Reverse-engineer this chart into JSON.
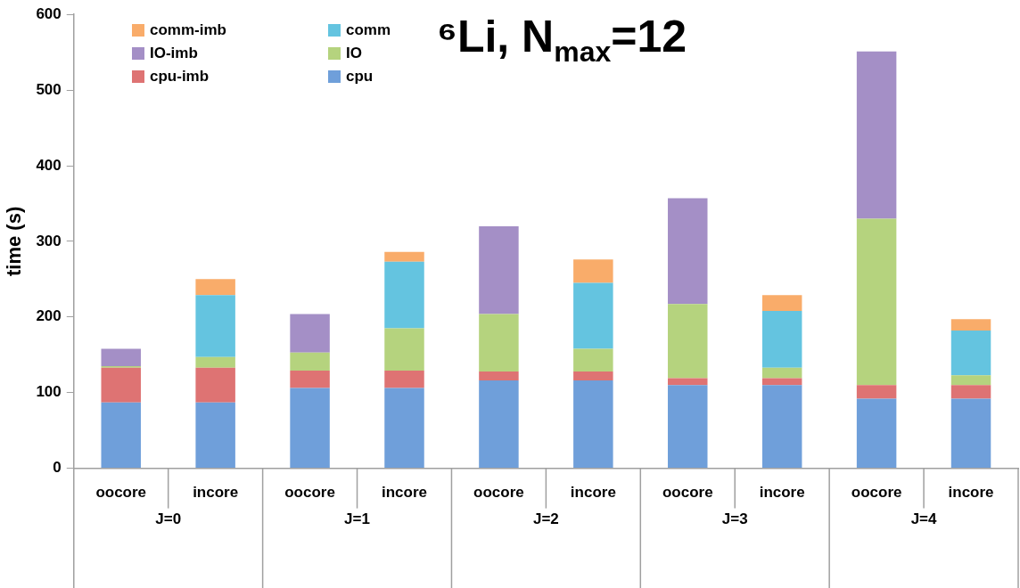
{
  "chart_data": {
    "type": "bar",
    "title": "⁶Li, N$_{max}$=12",
    "ylabel": "time (s)",
    "stacked": true,
    "categories": [
      "oocore",
      "incore",
      "oocore",
      "incore",
      "oocore",
      "incore",
      "oocore",
      "incore",
      "oocore",
      "incore"
    ],
    "annotations": [
      "J=0",
      "J=1",
      "J=2",
      "J=3",
      "J=4"
    ],
    "series": [
      {
        "name": "cpu",
        "color": "#6f9fda",
        "values": [
          87,
          87,
          106,
          106,
          116,
          116,
          110,
          110,
          92,
          92
        ]
      },
      {
        "name": "cpu-imb",
        "color": "#de7373",
        "values": [
          46,
          46,
          23,
          23,
          12,
          12,
          9,
          9,
          18,
          18
        ]
      },
      {
        "name": "IO",
        "color": "#b5d37e",
        "values": [
          2,
          14,
          24,
          56,
          76,
          30,
          98,
          14,
          220,
          13
        ]
      },
      {
        "name": "IO-imb",
        "color": "#a48fc6",
        "values": [
          23,
          0,
          51,
          0,
          116,
          0,
          140,
          0,
          221,
          0
        ]
      },
      {
        "name": "comm",
        "color": "#64c4e0",
        "values": [
          0,
          82,
          0,
          88,
          0,
          87,
          0,
          75,
          0,
          59
        ]
      },
      {
        "name": "comm-imb",
        "color": "#f9ac6a",
        "values": [
          0,
          21,
          0,
          13,
          0,
          31,
          0,
          21,
          0,
          15
        ]
      }
    ],
    "ylim": [
      0,
      600
    ],
    "yticks": [
      0,
      100,
      200,
      300,
      400,
      500,
      600
    ],
    "grid": false,
    "legend": "top left"
  }
}
